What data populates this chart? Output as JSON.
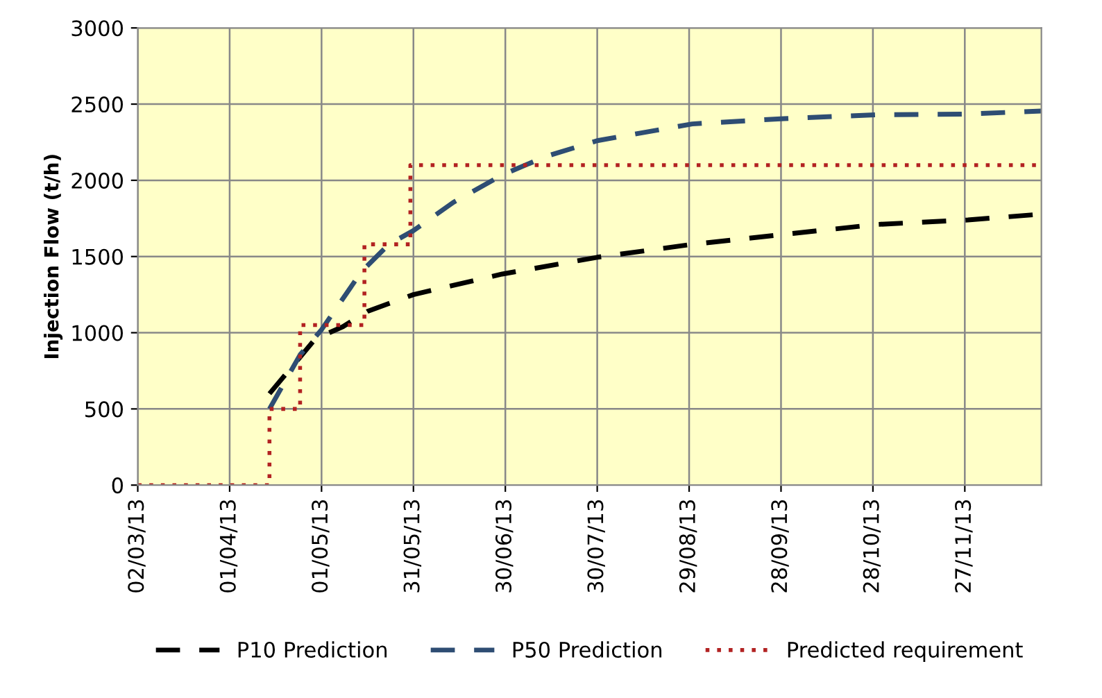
{
  "chart_data": {
    "type": "line",
    "ylabel": "Injection Flow (t/h)",
    "xlim": [
      "2013-03-02",
      "2013-12-22"
    ],
    "ylim": [
      0,
      3000
    ],
    "xticks": [
      {
        "value": "2013-03-02",
        "label": "02/03/13"
      },
      {
        "value": "2013-04-01",
        "label": "01/04/13"
      },
      {
        "value": "2013-05-01",
        "label": "01/05/13"
      },
      {
        "value": "2013-05-31",
        "label": "31/05/13"
      },
      {
        "value": "2013-06-30",
        "label": "30/06/13"
      },
      {
        "value": "2013-07-30",
        "label": "30/07/13"
      },
      {
        "value": "2013-08-29",
        "label": "29/08/13"
      },
      {
        "value": "2013-09-28",
        "label": "28/09/13"
      },
      {
        "value": "2013-10-28",
        "label": "28/10/13"
      },
      {
        "value": "2013-11-27",
        "label": "27/11/13"
      }
    ],
    "yticks": [
      0,
      500,
      1000,
      1500,
      2000,
      2500,
      3000
    ],
    "grid": true,
    "legend": "bottom",
    "series": [
      {
        "name": "P10 Prediction",
        "color": "#000000",
        "line_style": "dashed",
        "x": [
          "2013-04-14",
          "2013-04-24",
          "2013-04-29",
          "2013-05-08",
          "2013-05-16",
          "2013-05-31",
          "2013-06-29",
          "2013-07-30",
          "2013-08-30",
          "2013-09-29",
          "2013-10-29",
          "2013-11-28",
          "2013-12-20"
        ],
        "values": [
          600,
          840,
          960,
          1040,
          1140,
          1250,
          1385,
          1495,
          1580,
          1645,
          1710,
          1740,
          1775
        ]
      },
      {
        "name": "P50 Prediction",
        "color": "#2e4d73",
        "line_style": "dashed",
        "x": [
          "2013-04-14",
          "2013-04-24",
          "2013-05-01",
          "2013-05-14",
          "2013-05-23",
          "2013-05-31",
          "2013-06-13",
          "2013-06-29",
          "2013-07-13",
          "2013-07-30",
          "2013-08-30",
          "2013-09-29",
          "2013-10-29",
          "2013-11-28",
          "2013-12-22"
        ],
        "values": [
          500,
          855,
          1020,
          1400,
          1580,
          1670,
          1855,
          2035,
          2155,
          2260,
          2370,
          2405,
          2430,
          2435,
          2455
        ]
      },
      {
        "name": "Predicted requirement",
        "color": "#b22222",
        "line_style": "dotted",
        "type": "step",
        "x": [
          "2013-03-02",
          "2013-04-14",
          "2013-04-24",
          "2013-05-15",
          "2013-05-30",
          "2013-12-22"
        ],
        "values": [
          0,
          500,
          1050,
          1580,
          2100,
          2100
        ]
      }
    ]
  }
}
